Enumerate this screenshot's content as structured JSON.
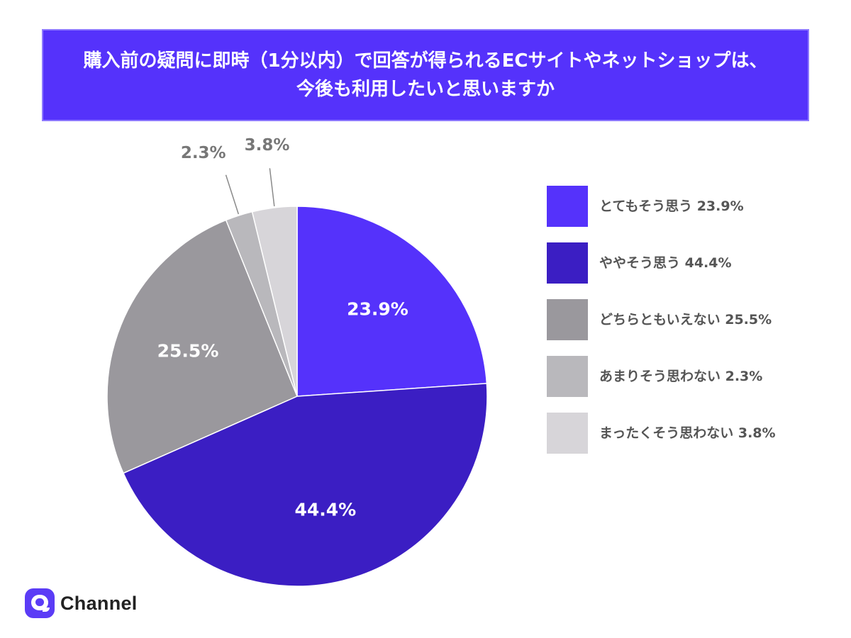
{
  "title": {
    "line1": "購入前の疑問に即時（1分以内）で回答が得られるECサイトやネットショップは、",
    "line2": "今後も利用したいと思いますか"
  },
  "chart_data": {
    "type": "pie",
    "start_angle_deg": 0,
    "direction": "clockwise",
    "slices": [
      {
        "label": "とてもそう思う",
        "value": 23.9,
        "value_label": "23.9%",
        "color": "#5532fb",
        "label_color": "#ffffff",
        "label_position": "inside"
      },
      {
        "label": "ややそう思う",
        "value": 44.4,
        "value_label": "44.4%",
        "color": "#3b1ec3",
        "label_color": "#ffffff",
        "label_position": "inside"
      },
      {
        "label": "どちらともいえない",
        "value": 25.5,
        "value_label": "25.5%",
        "color": "#9a989d",
        "label_color": "#ffffff",
        "label_position": "inside"
      },
      {
        "label": "あまりそう思わない",
        "value": 2.3,
        "value_label": "2.3%",
        "color": "#b9b8bc",
        "label_color": "#777777",
        "label_position": "outside"
      },
      {
        "label": "まったくそう思わない",
        "value": 3.8,
        "value_label": "3.8%",
        "color": "#d7d5d9",
        "label_color": "#777777",
        "label_position": "outside"
      }
    ],
    "legend": [
      "とてもそう思う 23.9%",
      "ややそう思う 44.4%",
      "どちらともいえない 25.5%",
      "あまりそう思わない 2.3%",
      "まったくそう思わない 3.8%"
    ],
    "legend_placement": "right"
  },
  "brand": {
    "name": "Channel",
    "icon": "channel-chat-bubble-icon",
    "color": "#5b3cf6"
  },
  "colors": {
    "banner": "#5532fb",
    "banner_border": "#8e79ff"
  }
}
